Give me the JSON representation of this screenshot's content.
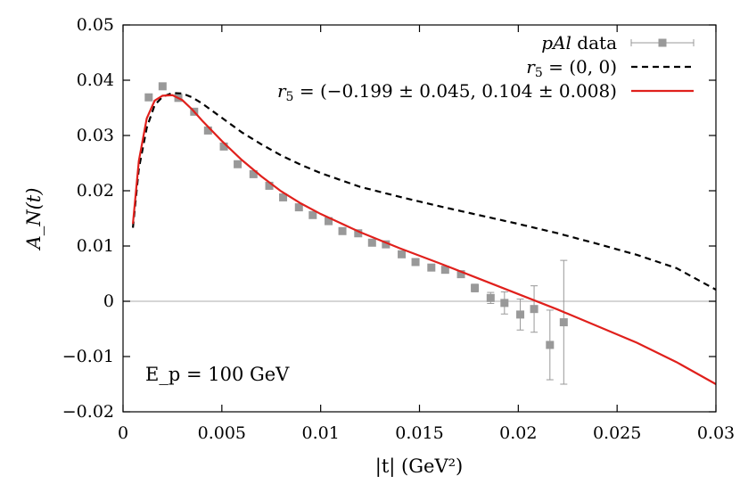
{
  "chart_data": {
    "type": "line",
    "xlabel": "|t| (GeV²)",
    "ylabel": "A_N(t)",
    "xlim": [
      0,
      0.03
    ],
    "ylim": [
      -0.02,
      0.05
    ],
    "x_ticks": [
      0,
      0.005,
      0.01,
      0.015,
      0.02,
      0.025,
      0.03
    ],
    "x_tick_labels": [
      "0",
      "0.005",
      "0.01",
      "0.015",
      "0.02",
      "0.025",
      "0.03"
    ],
    "y_ticks": [
      -0.02,
      -0.01,
      0,
      0.01,
      0.02,
      0.03,
      0.04,
      0.05
    ],
    "y_tick_labels": [
      "−0.02",
      "−0.01",
      "0",
      "0.01",
      "0.02",
      "0.03",
      "0.04",
      "0.05"
    ],
    "zero_line": true,
    "grid": false,
    "legend_position": "top-right",
    "annotation": "E_p = 100 GeV",
    "series": [
      {
        "name": "pAl data",
        "kind": "points-with-errors",
        "color": "#999999",
        "points": [
          {
            "x": 0.0013,
            "y": 0.0369,
            "err": 0.0003
          },
          {
            "x": 0.002,
            "y": 0.0389,
            "err": 0.0003
          },
          {
            "x": 0.0028,
            "y": 0.0368,
            "err": 0.0003
          },
          {
            "x": 0.0036,
            "y": 0.0343,
            "err": 0.0003
          },
          {
            "x": 0.0043,
            "y": 0.0309,
            "err": 0.0003
          },
          {
            "x": 0.0051,
            "y": 0.028,
            "err": 0.0003
          },
          {
            "x": 0.0058,
            "y": 0.0248,
            "err": 0.0003
          },
          {
            "x": 0.0066,
            "y": 0.023,
            "err": 0.0003
          },
          {
            "x": 0.0074,
            "y": 0.0209,
            "err": 0.0003
          },
          {
            "x": 0.0081,
            "y": 0.0188,
            "err": 0.0003
          },
          {
            "x": 0.0089,
            "y": 0.017,
            "err": 0.0003
          },
          {
            "x": 0.0096,
            "y": 0.0156,
            "err": 0.0003
          },
          {
            "x": 0.0104,
            "y": 0.0145,
            "err": 0.0003
          },
          {
            "x": 0.0111,
            "y": 0.0127,
            "err": 0.0003
          },
          {
            "x": 0.0119,
            "y": 0.0123,
            "err": 0.0003
          },
          {
            "x": 0.0126,
            "y": 0.0106,
            "err": 0.0003
          },
          {
            "x": 0.0133,
            "y": 0.0103,
            "err": 0.0004
          },
          {
            "x": 0.0141,
            "y": 0.0085,
            "err": 0.0004
          },
          {
            "x": 0.0148,
            "y": 0.0071,
            "err": 0.0004
          },
          {
            "x": 0.0156,
            "y": 0.0061,
            "err": 0.0004
          },
          {
            "x": 0.0163,
            "y": 0.0057,
            "err": 0.0005
          },
          {
            "x": 0.0171,
            "y": 0.0049,
            "err": 0.0005
          },
          {
            "x": 0.0178,
            "y": 0.0024,
            "err": 0.0007
          },
          {
            "x": 0.0186,
            "y": 0.0006,
            "err": 0.001
          },
          {
            "x": 0.0193,
            "y": -0.0003,
            "err": 0.002
          },
          {
            "x": 0.0201,
            "y": -0.0024,
            "err": 0.0028
          },
          {
            "x": 0.0208,
            "y": -0.0014,
            "err": 0.0042
          },
          {
            "x": 0.0216,
            "y": -0.0079,
            "err": 0.0063
          },
          {
            "x": 0.0223,
            "y": -0.0038,
            "err": 0.0112
          }
        ]
      },
      {
        "name": "r_5 = (0, 0)",
        "kind": "line",
        "color": "#000000",
        "dash": true,
        "x": [
          0.0005,
          0.0008,
          0.0012,
          0.0016,
          0.002,
          0.0025,
          0.003,
          0.0035,
          0.004,
          0.005,
          0.006,
          0.007,
          0.008,
          0.009,
          0.01,
          0.012,
          0.014,
          0.016,
          0.018,
          0.02,
          0.022,
          0.024,
          0.026,
          0.028,
          0.03
        ],
        "y": [
          0.0133,
          0.024,
          0.0314,
          0.0355,
          0.037,
          0.0377,
          0.0376,
          0.0369,
          0.0358,
          0.0332,
          0.0306,
          0.0284,
          0.0264,
          0.0247,
          0.0232,
          0.0207,
          0.0189,
          0.0172,
          0.0156,
          0.014,
          0.0123,
          0.0104,
          0.0084,
          0.006,
          0.0021
        ]
      },
      {
        "name": "r_5 = (−0.199 ± 0.045, 0.104 ± 0.008)",
        "kind": "line",
        "color": "#e0201c",
        "dash": false,
        "x": [
          0.0005,
          0.0008,
          0.0012,
          0.0016,
          0.002,
          0.0025,
          0.003,
          0.0035,
          0.004,
          0.005,
          0.006,
          0.007,
          0.008,
          0.009,
          0.01,
          0.012,
          0.014,
          0.016,
          0.018,
          0.02,
          0.022,
          0.024,
          0.026,
          0.028,
          0.03
        ],
        "y": [
          0.014,
          0.0254,
          0.0331,
          0.0363,
          0.0372,
          0.0373,
          0.0364,
          0.0347,
          0.0327,
          0.029,
          0.0256,
          0.0226,
          0.0199,
          0.0177,
          0.0158,
          0.0125,
          0.0096,
          0.0069,
          0.0041,
          0.0013,
          -0.0015,
          -0.0045,
          -0.0075,
          -0.011,
          -0.015
        ]
      }
    ]
  }
}
